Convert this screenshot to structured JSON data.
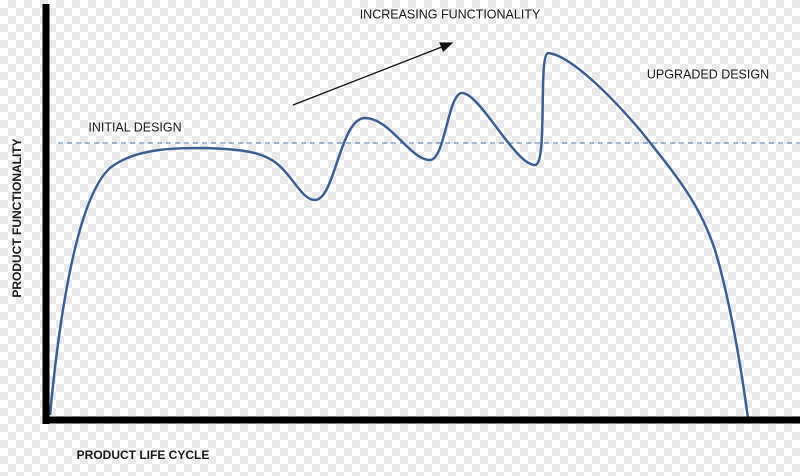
{
  "annotations": {
    "increasing": "INCREASING FUNCTIONALITY",
    "upgraded": "UPGRADED DESIGN",
    "initial": "INITIAL DESIGN"
  },
  "axes": {
    "y_label": "PRODUCT FUNCTIONALITY",
    "x_label": "PRODUCT LIFE CYCLE"
  }
}
